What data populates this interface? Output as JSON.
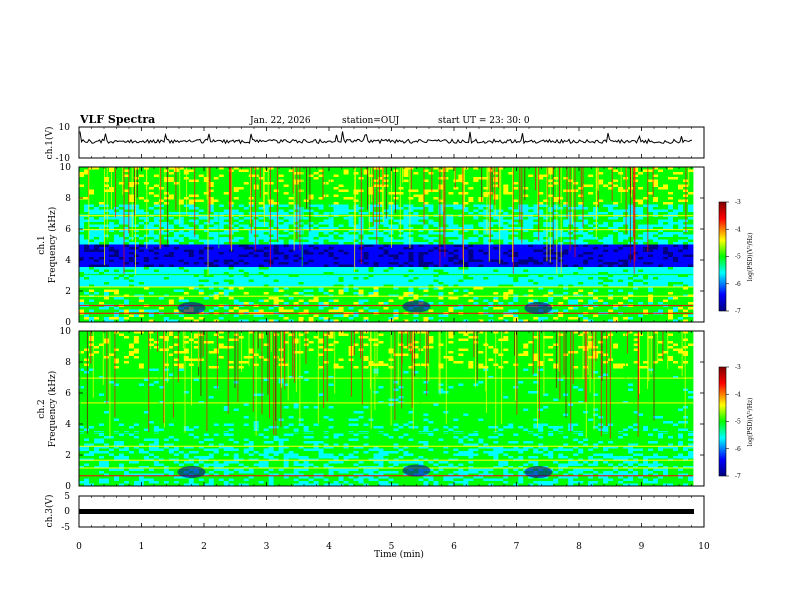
{
  "header": {
    "title": "VLF Spectra",
    "date": "Jan. 22, 2026",
    "station": "station=OUJ",
    "start": "start UT =  23: 30: 0"
  },
  "colors": {
    "trace": "#000000",
    "colormap": [
      "#000080",
      "#0000ff",
      "#00ffff",
      "#00ff00",
      "#ffff00",
      "#ff0000",
      "#800000"
    ]
  },
  "chart_data": [
    {
      "type": "line",
      "title": "",
      "ylabel": "ch.1(V)",
      "xlim": [
        0,
        10
      ],
      "ylim": [
        -10,
        10
      ],
      "yticklabels": [
        "10",
        "-10"
      ],
      "series": [
        {
          "values_approx": "noisy trace near +1 V with occasional spikes"
        }
      ]
    },
    {
      "type": "heatmap",
      "ylabel": "ch.1\nFrequency (kHz)",
      "ylim": [
        0,
        10
      ],
      "yticklabels": [
        "10",
        "8",
        "6",
        "4",
        "2",
        "0"
      ],
      "xlim": [
        0,
        10
      ],
      "colorbar": {
        "label": "log(PSD)(V²/Hz)",
        "range": [
          -7,
          -3
        ],
        "ticklabels": [
          "-3",
          "-4",
          "-5",
          "-6",
          "-7"
        ]
      }
    },
    {
      "type": "heatmap",
      "ylabel": "ch.2\nFrequency (kHz)",
      "ylim": [
        0,
        10
      ],
      "yticklabels": [
        "10",
        "8",
        "6",
        "4",
        "2",
        "0"
      ],
      "xlim": [
        0,
        10
      ],
      "colorbar": {
        "label": "log(PSD)(V²/Hz)",
        "range": [
          -7,
          -3
        ],
        "ticklabels": [
          "-3",
          "-4",
          "-5",
          "-6",
          "-7"
        ]
      }
    },
    {
      "type": "line",
      "ylabel": "ch.3(V)",
      "xlim": [
        0,
        10
      ],
      "ylim": [
        -5,
        5
      ],
      "yticklabels": [
        "5",
        "0",
        "-5"
      ],
      "series": [
        {
          "values_approx": "flat trace near -0.8 V"
        }
      ]
    }
  ],
  "xaxis": {
    "label": "Time (min)",
    "ticklabels": [
      "0",
      "1",
      "2",
      "3",
      "4",
      "5",
      "6",
      "7",
      "8",
      "9",
      "10"
    ]
  }
}
